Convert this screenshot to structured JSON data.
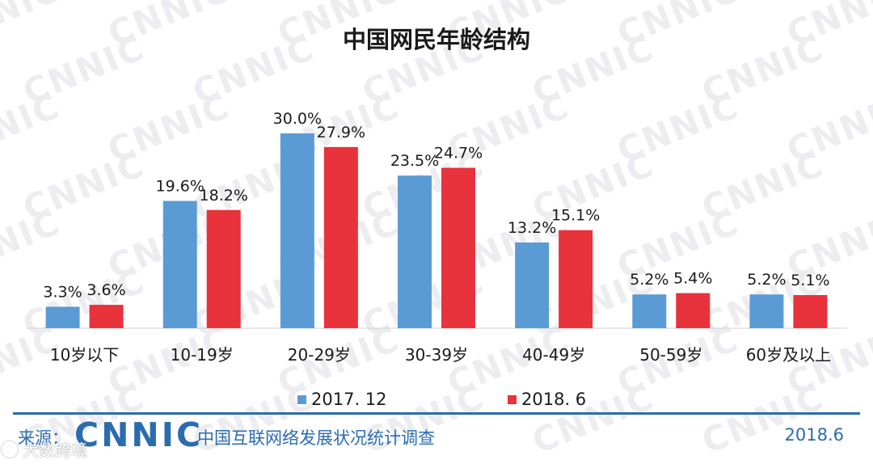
{
  "watermark_text": "CNNIC",
  "chart_data": {
    "type": "bar",
    "title": "中国网民年龄结构",
    "categories": [
      "10岁以下",
      "10-19岁",
      "20-29岁",
      "30-39岁",
      "40-49岁",
      "50-59岁",
      "60岁及以上"
    ],
    "series": [
      {
        "name": "2017. 12",
        "color": "#5b9bd5",
        "values": [
          3.3,
          19.6,
          30.0,
          23.5,
          13.2,
          5.2,
          5.2
        ],
        "labels": [
          "3.3%",
          "19.6%",
          "30.0%",
          "23.5%",
          "13.2%",
          "5.2%",
          "5.2%"
        ]
      },
      {
        "name": "2018. 6",
        "color": "#e8323c",
        "values": [
          3.6,
          18.2,
          27.9,
          24.7,
          15.1,
          5.4,
          5.1
        ],
        "labels": [
          "3.6%",
          "18.2%",
          "27.9%",
          "24.7%",
          "15.1%",
          "5.4%",
          "5.1%"
        ]
      }
    ],
    "ylim": [
      0,
      30
    ],
    "grid": false,
    "legend_position": "bottom"
  },
  "footer": {
    "source_label": "来源：",
    "logo_text": "CNNIC",
    "survey_name": "中国互联网络发展状况统计调查",
    "date": "2018.6",
    "watermark_account": "大数跨境"
  }
}
